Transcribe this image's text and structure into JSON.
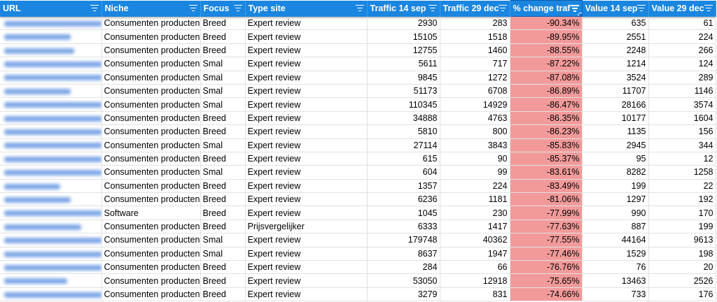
{
  "header": {
    "columns": [
      "URL",
      "Niche",
      "Focus",
      "Type site",
      "Traffic 14 sep",
      "Traffic 29 dec",
      "% change traf",
      "Value 14 sep",
      "Value 29 dec"
    ],
    "filter_icon": "filter-icon"
  },
  "colors": {
    "header_bg": "#1a86e0",
    "highlight": "#f29a9a"
  },
  "rows": [
    {
      "niche": "Consumenten producten",
      "focus": "Breed",
      "type": "Expert review",
      "t1": "2930",
      "t2": "283",
      "pct": "-90.34%",
      "v1": "635",
      "v2": "61"
    },
    {
      "niche": "Consumenten producten",
      "focus": "Breed",
      "type": "Expert review",
      "t1": "15105",
      "t2": "1518",
      "pct": "-89.95%",
      "v1": "2551",
      "v2": "224"
    },
    {
      "niche": "Consumenten producten",
      "focus": "Breed",
      "type": "Expert review",
      "t1": "12755",
      "t2": "1460",
      "pct": "-88.55%",
      "v1": "2248",
      "v2": "266"
    },
    {
      "niche": "Consumenten producten",
      "focus": "Smal",
      "type": "Expert review",
      "t1": "5611",
      "t2": "717",
      "pct": "-87.22%",
      "v1": "1214",
      "v2": "124"
    },
    {
      "niche": "Consumenten producten",
      "focus": "Smal",
      "type": "Expert review",
      "t1": "9845",
      "t2": "1272",
      "pct": "-87.08%",
      "v1": "3524",
      "v2": "289"
    },
    {
      "niche": "Consumenten producten",
      "focus": "Smal",
      "type": "Expert review",
      "t1": "51173",
      "t2": "6708",
      "pct": "-86.89%",
      "v1": "11707",
      "v2": "1146"
    },
    {
      "niche": "Consumenten producten",
      "focus": "Smal",
      "type": "Expert review",
      "t1": "110345",
      "t2": "14929",
      "pct": "-86.47%",
      "v1": "28166",
      "v2": "3574"
    },
    {
      "niche": "Consumenten producten",
      "focus": "Breed",
      "type": "Expert review",
      "t1": "34888",
      "t2": "4763",
      "pct": "-86.35%",
      "v1": "10177",
      "v2": "1604"
    },
    {
      "niche": "Consumenten producten",
      "focus": "Breed",
      "type": "Expert review",
      "t1": "5810",
      "t2": "800",
      "pct": "-86.23%",
      "v1": "1135",
      "v2": "156"
    },
    {
      "niche": "Consumenten producten",
      "focus": "Smal",
      "type": "Expert review",
      "t1": "27114",
      "t2": "3843",
      "pct": "-85.83%",
      "v1": "2945",
      "v2": "344"
    },
    {
      "niche": "Consumenten producten",
      "focus": "Breed",
      "type": "Expert review",
      "t1": "615",
      "t2": "90",
      "pct": "-85.37%",
      "v1": "95",
      "v2": "12"
    },
    {
      "niche": "Consumenten producten",
      "focus": "Smal",
      "type": "Expert review",
      "t1": "604",
      "t2": "99",
      "pct": "-83.61%",
      "v1": "8282",
      "v2": "1258"
    },
    {
      "niche": "Consumenten producten",
      "focus": "Breed",
      "type": "Expert review",
      "t1": "1357",
      "t2": "224",
      "pct": "-83.49%",
      "v1": "199",
      "v2": "22"
    },
    {
      "niche": "Consumenten producten",
      "focus": "Breed",
      "type": "Expert review",
      "t1": "6236",
      "t2": "1181",
      "pct": "-81.06%",
      "v1": "1297",
      "v2": "192"
    },
    {
      "niche": "Software",
      "focus": "Breed",
      "type": "Expert review",
      "t1": "1045",
      "t2": "230",
      "pct": "-77.99%",
      "v1": "990",
      "v2": "170"
    },
    {
      "niche": "Consumenten producten",
      "focus": "Breed",
      "type": "Prijsvergelijker",
      "t1": "6333",
      "t2": "1417",
      "pct": "-77.63%",
      "v1": "887",
      "v2": "199"
    },
    {
      "niche": "Consumenten producten",
      "focus": "Smal",
      "type": "Expert review",
      "t1": "179748",
      "t2": "40362",
      "pct": "-77.55%",
      "v1": "44164",
      "v2": "9613"
    },
    {
      "niche": "Consumenten producten",
      "focus": "Smal",
      "type": "Expert review",
      "t1": "8637",
      "t2": "1947",
      "pct": "-77.46%",
      "v1": "1529",
      "v2": "198"
    },
    {
      "niche": "Consumenten producten",
      "focus": "Breed",
      "type": "Expert review",
      "t1": "284",
      "t2": "66",
      "pct": "-76.76%",
      "v1": "76",
      "v2": "20"
    },
    {
      "niche": "Consumenten producten",
      "focus": "Breed",
      "type": "Expert review",
      "t1": "53050",
      "t2": "12918",
      "pct": "-75.65%",
      "v1": "13463",
      "v2": "2526"
    },
    {
      "niche": "Consumenten producten",
      "focus": "Breed",
      "type": "Expert review",
      "t1": "3279",
      "t2": "831",
      "pct": "-74.66%",
      "v1": "733",
      "v2": "176"
    }
  ]
}
